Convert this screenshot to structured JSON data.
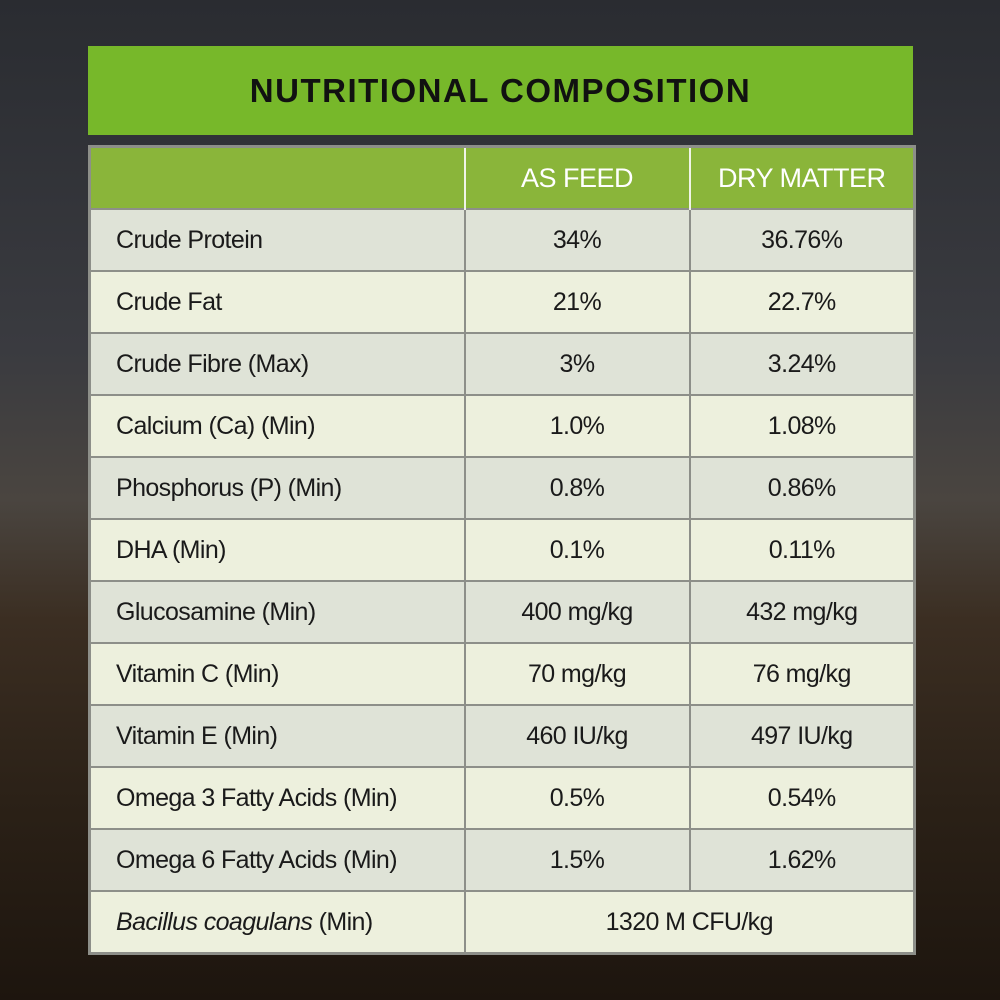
{
  "title": "NUTRITIONAL COMPOSITION",
  "colors": {
    "title_bar": "#77b82a",
    "header_row": "#8ab53a",
    "row_odd": "#dfe3d7",
    "row_even": "#edf0dd"
  },
  "table": {
    "headers": [
      "",
      "AS FEED",
      "DRY MATTER"
    ],
    "rows": [
      {
        "label": "Crude Protein",
        "as_feed": "34%",
        "dry_matter": "36.76%"
      },
      {
        "label": "Crude Fat",
        "as_feed": "21%",
        "dry_matter": "22.7%"
      },
      {
        "label": "Crude Fibre (Max)",
        "as_feed": "3%",
        "dry_matter": "3.24%"
      },
      {
        "label": "Calcium (Ca) (Min)",
        "as_feed": "1.0%",
        "dry_matter": "1.08%"
      },
      {
        "label": "Phosphorus (P) (Min)",
        "as_feed": "0.8%",
        "dry_matter": "0.86%"
      },
      {
        "label": "DHA (Min)",
        "as_feed": "0.1%",
        "dry_matter": "0.11%"
      },
      {
        "label": "Glucosamine (Min)",
        "as_feed": "400 mg/kg",
        "dry_matter": "432 mg/kg"
      },
      {
        "label": "Vitamin C (Min)",
        "as_feed": "70 mg/kg",
        "dry_matter": "76 mg/kg"
      },
      {
        "label": "Vitamin E (Min)",
        "as_feed": "460 IU/kg",
        "dry_matter": "497 IU/kg"
      },
      {
        "label": "Omega 3 Fatty Acids (Min)",
        "as_feed": "0.5%",
        "dry_matter": "0.54%"
      },
      {
        "label": "Omega 6 Fatty Acids (Min)",
        "as_feed": "1.5%",
        "dry_matter": "1.62%"
      }
    ],
    "last_row": {
      "label_italic": "Bacillus coagulans",
      "label_suffix": " (Min)",
      "value": "1320 M CFU/kg"
    }
  }
}
